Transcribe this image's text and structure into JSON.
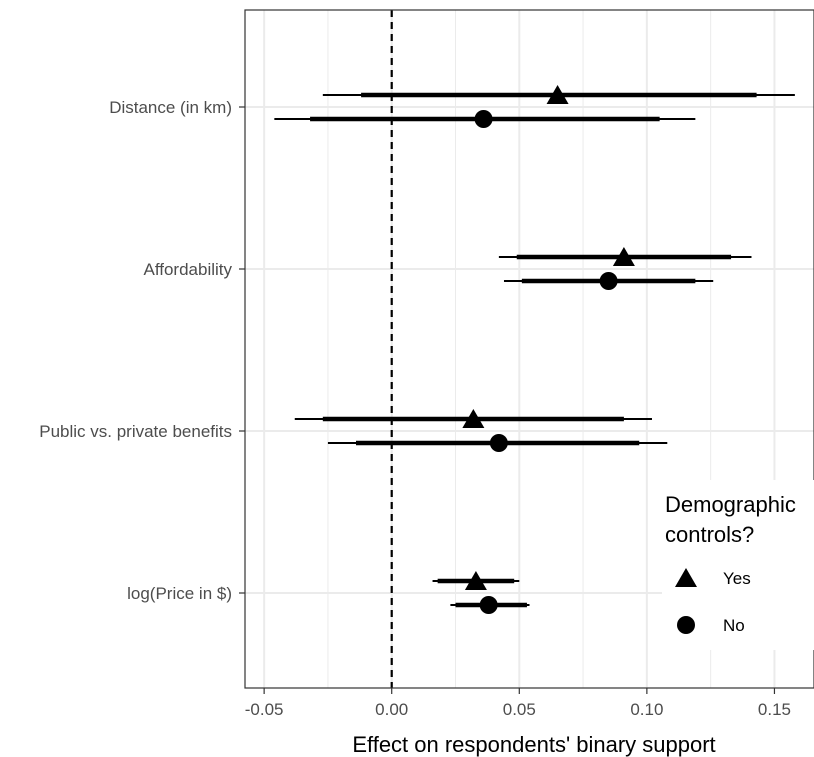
{
  "chart_data": {
    "type": "coefficient-plot",
    "title": "",
    "xlabel": "Effect on respondents' binary support",
    "ylabel": "",
    "xlim": [
      -0.0575,
      0.1655
    ],
    "x_ticks": [
      -0.05,
      0.0,
      0.05,
      0.1,
      0.15
    ],
    "x_tick_labels": [
      "-0.05",
      "0.00",
      "0.05",
      "0.10",
      "0.15"
    ],
    "reference_line": {
      "x": 0,
      "style": "dashed"
    },
    "grid": true,
    "categories": [
      "Distance (in km)",
      "Affordability",
      "Public vs. private benefits",
      "log(Price in $)"
    ],
    "series": [
      {
        "name": "Yes",
        "marker": "triangle",
        "estimates": [
          0.065,
          0.091,
          0.032,
          0.033
        ],
        "ci_inner": [
          [
            -0.012,
            0.143
          ],
          [
            0.049,
            0.133
          ],
          [
            -0.027,
            0.091
          ],
          [
            0.018,
            0.048
          ]
        ],
        "ci_outer": [
          [
            -0.027,
            0.158
          ],
          [
            0.042,
            0.141
          ],
          [
            -0.038,
            0.102
          ],
          [
            0.016,
            0.05
          ]
        ]
      },
      {
        "name": "No",
        "marker": "circle",
        "estimates": [
          0.036,
          0.085,
          0.042,
          0.038
        ],
        "ci_inner": [
          [
            -0.032,
            0.105
          ],
          [
            0.051,
            0.119
          ],
          [
            -0.014,
            0.097
          ],
          [
            0.025,
            0.053
          ]
        ],
        "ci_outer": [
          [
            -0.046,
            0.119
          ],
          [
            0.044,
            0.126
          ],
          [
            -0.025,
            0.108
          ],
          [
            0.023,
            0.054
          ]
        ]
      }
    ],
    "legend": {
      "title_lines": [
        "Demographic",
        "controls?"
      ],
      "placement": "bottom-right",
      "entries": [
        "Yes",
        "No"
      ]
    },
    "colors": {
      "marks": "#000000",
      "grid": "#ebebeb",
      "panel_border": "#333333",
      "tick_text": "#4d4d4d"
    }
  }
}
